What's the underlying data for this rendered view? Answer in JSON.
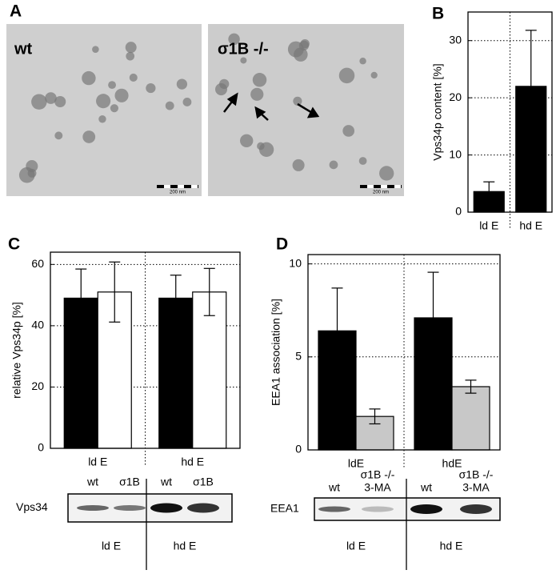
{
  "panel_labels": [
    "A",
    "B",
    "C",
    "D"
  ],
  "micrographs": [
    {
      "label": "wt",
      "scale": "200 nm"
    },
    {
      "label": "σ1B -/-",
      "scale": "200 nm"
    }
  ],
  "chart_data": [
    {
      "type": "bar",
      "y_label": "Vps34p content [%]",
      "categories": [
        "ld E",
        "hd E"
      ],
      "series": [
        {
          "color": "#000000",
          "values": [
            3.6,
            22
          ],
          "errors": [
            1.7,
            9.8
          ]
        }
      ],
      "ylim": [
        0,
        35
      ],
      "yticks": [
        0,
        10,
        20,
        30
      ],
      "grid": true
    },
    {
      "type": "bar",
      "y_label": "relative Vps34p [%]",
      "categories": [
        "ld E",
        "hd E"
      ],
      "series": [
        {
          "color": "#000000",
          "values": [
            49,
            49
          ],
          "errors": [
            9.5,
            7.5
          ]
        },
        {
          "color": "#ffffff",
          "values": [
            51,
            51
          ],
          "errors": [
            9.8,
            7.7
          ]
        }
      ],
      "ylim": [
        0,
        64
      ],
      "yticks": [
        0,
        20,
        40,
        60
      ],
      "grid": true
    },
    {
      "type": "bar",
      "y_label": "EEA1 association [%]",
      "categories": [
        "ldE",
        "hdE"
      ],
      "series": [
        {
          "color": "#000000",
          "values": [
            6.4,
            7.1
          ],
          "errors": [
            2.3,
            2.45
          ]
        },
        {
          "color": "#c8c8c8",
          "values": [
            1.8,
            3.4
          ],
          "errors": [
            0.4,
            0.35
          ]
        }
      ],
      "ylim": [
        0,
        10.5
      ],
      "yticks": [
        0,
        5,
        10
      ],
      "grid": true
    }
  ],
  "blots": [
    {
      "protein": "Vps34",
      "lanes": [
        [
          "wt"
        ],
        [
          "σ1B"
        ],
        [
          "wt"
        ],
        [
          "σ1B"
        ]
      ],
      "groups": [
        "ld E",
        "hd E"
      ]
    },
    {
      "protein": "EEA1",
      "lanes": [
        [
          "wt"
        ],
        [
          "σ1B -/-",
          "3-MA"
        ],
        [
          "wt"
        ],
        [
          "σ1B -/-",
          "3-MA"
        ]
      ],
      "groups": [
        "ld E",
        "hd E"
      ]
    }
  ]
}
